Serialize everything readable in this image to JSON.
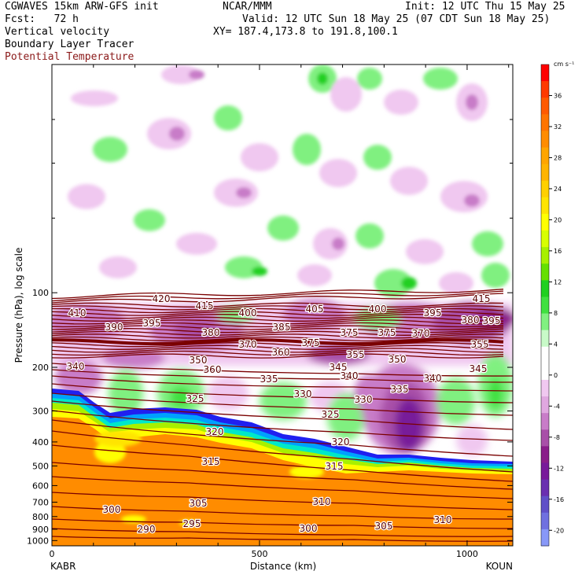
{
  "header": {
    "line1_left": "CGWAVES 15km ARW-GFS init",
    "line1_center": "NCAR/MMM",
    "line1_right": "Init: 12 UTC Thu 15 May 25",
    "line2_left": "Fcst:   72 h",
    "line2_right": "Valid: 12 UTC Sun 18 May 25 (07 CDT Sun 18 May 25)",
    "line3_left": "Vertical velocity",
    "line3_right": "XY= 187.4,173.8 to 191.8,100.1",
    "line4_left": "Boundary Layer Tracer",
    "line5_left": "Potential Temperature"
  },
  "chart_data": {
    "type": "heatmap",
    "xlabel": "Distance (km)",
    "ylabel": "Pressure (hPa), log scale",
    "x_ticks": [
      "0",
      "500",
      "1000"
    ],
    "x_tick_values": [
      0,
      500,
      1000
    ],
    "xlim": [
      0,
      1110
    ],
    "y_ticks": [
      "100",
      "200",
      "300",
      "400",
      "500",
      "600",
      "700",
      "800",
      "900",
      "1000"
    ],
    "y_tick_values": [
      100,
      200,
      300,
      400,
      500,
      600,
      700,
      800,
      900,
      1000
    ],
    "ylim": [
      1050,
      12
    ],
    "y_scale": "log",
    "x_endpoints": {
      "left": "KABR",
      "right": "KOUN"
    },
    "colorbar": {
      "unit": "cm s⁻¹",
      "labels": [
        "36",
        "32",
        "28",
        "24",
        "20",
        "16",
        "12",
        "8",
        "4",
        "0",
        "-4",
        "-8",
        "-12",
        "-16",
        "-20"
      ],
      "label_values": [
        36,
        32,
        28,
        24,
        20,
        16,
        12,
        8,
        4,
        0,
        -4,
        -8,
        -12,
        -16,
        -20
      ],
      "colors": [
        "#ff0000",
        "#ff3a00",
        "#ff5a00",
        "#ff7400",
        "#ff8c00",
        "#ffa500",
        "#ffb400",
        "#ffd000",
        "#ffe400",
        "#ffff00",
        "#d8ff00",
        "#a8f000",
        "#66e000",
        "#20d020",
        "#40e040",
        "#80f080",
        "#c8fac8",
        "#ffffff",
        "#ffffff",
        "#f0c8f0",
        "#e0a8e0",
        "#c87cc8",
        "#a850a8",
        "#8a1e8a",
        "#781a9a",
        "#6a30b0",
        "#6050c8",
        "#7070e0",
        "#8898f8"
      ]
    },
    "theta_labels": [
      "420",
      "415",
      "410",
      "400",
      "405",
      "400",
      "395",
      "415",
      "390",
      "395",
      "380",
      "385",
      "375",
      "375",
      "370",
      "395",
      "380",
      "375",
      "370",
      "360",
      "360",
      "355",
      "350",
      "355",
      "340",
      "350",
      "345",
      "345",
      "340",
      "335",
      "330",
      "330",
      "340",
      "325",
      "325",
      "335",
      "320",
      "320",
      "315",
      "315",
      "310",
      "310",
      "305",
      "305",
      "300",
      "300",
      "295",
      "290"
    ],
    "colors": {
      "theta_contour": "#7a0000",
      "boundary_layer": "#ff8c00",
      "updraft": "#40e040",
      "downdraft": "#c87cc8",
      "strong_downdraft": "#781a9a"
    }
  }
}
